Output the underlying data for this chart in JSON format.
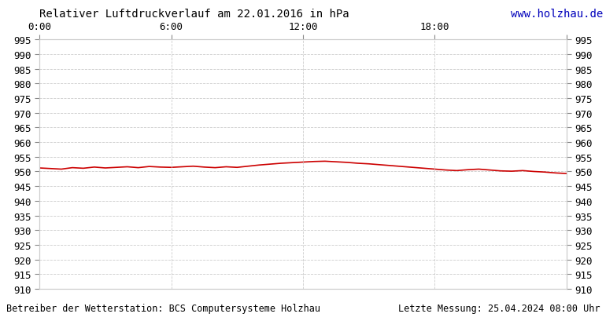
{
  "title": "Relativer Luftdruckverlauf am 22.01.2016 in hPa",
  "url_text": "www.holzhau.de",
  "footer_left": "Betreiber der Wetterstation: BCS Computersysteme Holzhau",
  "footer_right": "Letzte Messung: 25.04.2024 08:00 Uhr",
  "xlim": [
    0,
    1440
  ],
  "ylim": [
    910,
    995
  ],
  "yticks": [
    910,
    915,
    920,
    925,
    930,
    935,
    940,
    945,
    950,
    955,
    960,
    965,
    970,
    975,
    980,
    985,
    990,
    995
  ],
  "xticks": [
    0,
    360,
    720,
    1080,
    1440
  ],
  "xtick_labels": [
    "0:00",
    "6:00",
    "12:00",
    "18:00",
    ""
  ],
  "grid_color": "#cccccc",
  "line_color": "#cc0000",
  "bg_color": "#ffffff",
  "text_color": "#000000",
  "url_color": "#0000bb",
  "pressure_data": [
    [
      0,
      951.2
    ],
    [
      30,
      951.0
    ],
    [
      60,
      950.8
    ],
    [
      90,
      951.3
    ],
    [
      120,
      951.1
    ],
    [
      150,
      951.5
    ],
    [
      180,
      951.2
    ],
    [
      210,
      951.4
    ],
    [
      240,
      951.6
    ],
    [
      270,
      951.3
    ],
    [
      300,
      951.7
    ],
    [
      330,
      951.5
    ],
    [
      360,
      951.4
    ],
    [
      390,
      951.6
    ],
    [
      420,
      951.8
    ],
    [
      450,
      951.5
    ],
    [
      480,
      951.3
    ],
    [
      510,
      951.6
    ],
    [
      540,
      951.4
    ],
    [
      570,
      951.8
    ],
    [
      600,
      952.2
    ],
    [
      630,
      952.5
    ],
    [
      660,
      952.8
    ],
    [
      690,
      953.0
    ],
    [
      720,
      953.2
    ],
    [
      750,
      953.4
    ],
    [
      780,
      953.5
    ],
    [
      810,
      953.3
    ],
    [
      840,
      953.1
    ],
    [
      870,
      952.8
    ],
    [
      900,
      952.6
    ],
    [
      930,
      952.3
    ],
    [
      960,
      952.0
    ],
    [
      990,
      951.7
    ],
    [
      1020,
      951.4
    ],
    [
      1050,
      951.1
    ],
    [
      1080,
      950.8
    ],
    [
      1110,
      950.5
    ],
    [
      1140,
      950.3
    ],
    [
      1170,
      950.6
    ],
    [
      1200,
      950.8
    ],
    [
      1230,
      950.5
    ],
    [
      1260,
      950.2
    ],
    [
      1290,
      950.1
    ],
    [
      1320,
      950.3
    ],
    [
      1350,
      950.0
    ],
    [
      1380,
      949.8
    ],
    [
      1410,
      949.5
    ],
    [
      1440,
      949.3
    ]
  ],
  "title_fontsize": 10,
  "url_fontsize": 10,
  "tick_fontsize": 9,
  "footer_fontsize": 8.5
}
